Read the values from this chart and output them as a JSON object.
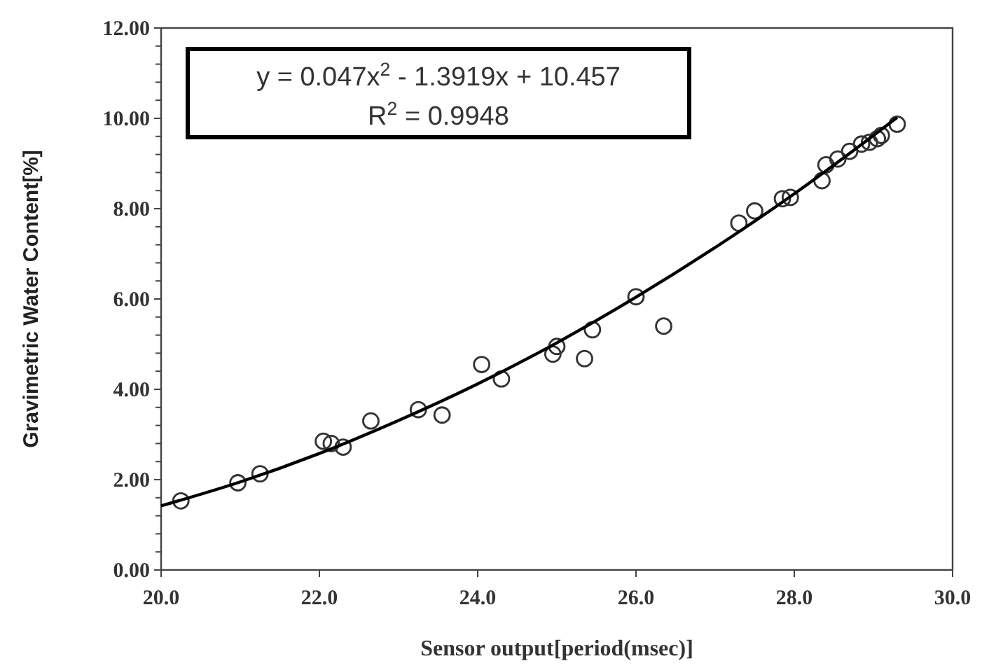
{
  "chart_data": {
    "type": "scatter",
    "xlabel": "Sensor output[period(msec)]",
    "ylabel": "Gravimetric Water Content[%]",
    "xlim": [
      20,
      30
    ],
    "xticks": [
      {
        "value": 20,
        "label": "20.0"
      },
      {
        "value": 22,
        "label": "22.0"
      },
      {
        "value": 24,
        "label": "24.0"
      },
      {
        "value": 26,
        "label": "26.0"
      },
      {
        "value": 28,
        "label": "28.0"
      },
      {
        "value": 30,
        "label": "30.0"
      }
    ],
    "ylim": [
      0,
      12
    ],
    "yticks": [
      {
        "value": 0,
        "label": "0.00"
      },
      {
        "value": 0.4,
        "label": null
      },
      {
        "value": 0.8,
        "label": null
      },
      {
        "value": 1.2,
        "label": null
      },
      {
        "value": 1.6,
        "label": null
      },
      {
        "value": 2,
        "label": "2.00"
      },
      {
        "value": 2.4,
        "label": null
      },
      {
        "value": 2.8,
        "label": null
      },
      {
        "value": 3.2,
        "label": null
      },
      {
        "value": 3.6,
        "label": null
      },
      {
        "value": 4,
        "label": "4.00"
      },
      {
        "value": 4.4,
        "label": null
      },
      {
        "value": 4.8,
        "label": null
      },
      {
        "value": 5.2,
        "label": null
      },
      {
        "value": 5.6,
        "label": null
      },
      {
        "value": 6,
        "label": "6.00"
      },
      {
        "value": 6.4,
        "label": null
      },
      {
        "value": 6.8,
        "label": null
      },
      {
        "value": 7.2,
        "label": null
      },
      {
        "value": 7.6,
        "label": null
      },
      {
        "value": 8,
        "label": "8.00"
      },
      {
        "value": 8.4,
        "label": null
      },
      {
        "value": 8.8,
        "label": null
      },
      {
        "value": 9.2,
        "label": null
      },
      {
        "value": 9.6,
        "label": null
      },
      {
        "value": 10,
        "label": "10.00"
      },
      {
        "value": 10.4,
        "label": null
      },
      {
        "value": 10.8,
        "label": null
      },
      {
        "value": 11.2,
        "label": null
      },
      {
        "value": 11.6,
        "label": null
      },
      {
        "value": 12,
        "label": "12.00"
      }
    ],
    "annotations": [
      "y = 0.047x$^{2}$ - 1.3919x + 10.457",
      "R$^{2}$ = 0.9948"
    ],
    "series": [
      {
        "color": "#333333",
        "marker": "circle",
        "x": [
          20.25,
          20.97,
          21.25,
          22.05,
          22.15,
          22.3,
          22.65,
          23.25,
          23.55,
          24.05,
          24.3,
          24.95,
          25.0,
          25.35,
          25.45,
          26.0,
          26.35,
          27.3,
          27.5,
          27.85,
          27.95,
          28.35,
          28.4,
          28.55,
          28.7,
          28.85,
          28.95,
          29.05,
          29.1,
          29.3
        ],
        "values": [
          1.53,
          1.93,
          2.13,
          2.85,
          2.8,
          2.72,
          3.3,
          3.55,
          3.43,
          4.55,
          4.23,
          4.78,
          4.95,
          4.68,
          5.32,
          6.05,
          5.4,
          7.68,
          7.95,
          8.22,
          8.25,
          8.62,
          8.97,
          9.1,
          9.27,
          9.43,
          9.47,
          9.55,
          9.62,
          9.87
        ]
      },
      {
        "type": "line",
        "color": "#000000",
        "marker": "none",
        "line_style": "solid",
        "x": [
          20,
          21,
          22,
          23,
          24,
          25,
          26,
          27,
          28,
          29,
          29.3
        ],
        "values": [
          1.42,
          1.95,
          2.58,
          3.31,
          4.12,
          5.03,
          6.04,
          7.14,
          8.33,
          9.62,
          10.02
        ]
      }
    ]
  }
}
